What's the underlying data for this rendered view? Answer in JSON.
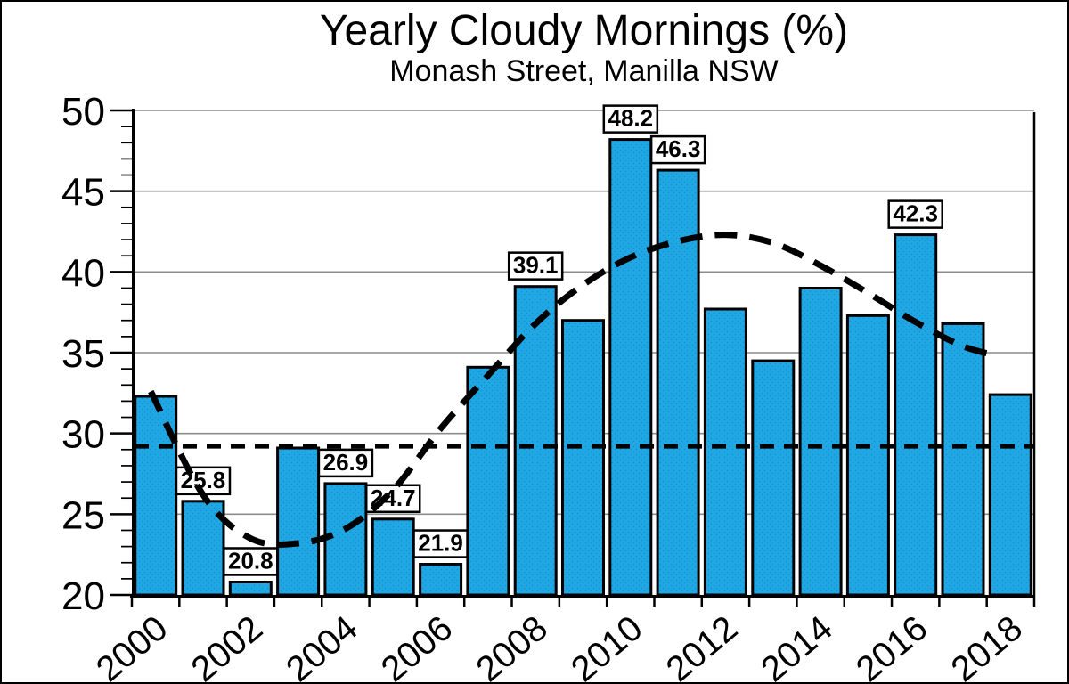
{
  "figure": {
    "title": "Yearly Cloudy Mornings (%)",
    "subtitle": "Monash Street, Manilla NSW"
  },
  "chart_data": {
    "type": "bar",
    "title": "Yearly Cloudy Mornings (%)",
    "subtitle": "Monash Street, Manilla NSW",
    "categories": [
      2000,
      2001,
      2002,
      2003,
      2004,
      2005,
      2006,
      2007,
      2008,
      2009,
      2010,
      2011,
      2012,
      2013,
      2014,
      2015,
      2016,
      2017,
      2018
    ],
    "values": [
      32.3,
      25.8,
      20.8,
      29.1,
      26.9,
      24.7,
      21.9,
      34.1,
      39.1,
      37.0,
      48.2,
      46.3,
      37.7,
      34.5,
      39.0,
      37.3,
      42.3,
      36.8,
      32.4
    ],
    "bar_value_labels": [
      "",
      "25.8",
      "20.8",
      "",
      "26.9",
      "24.7",
      "21.9",
      "",
      "39.1",
      "",
      "48.2",
      "46.3",
      "",
      "",
      "",
      "",
      "42.3",
      "",
      ""
    ],
    "ylim": [
      20,
      50
    ],
    "y_major_ticks": [
      20,
      25,
      30,
      35,
      40,
      45,
      50
    ],
    "y_minor_tick_step": 1,
    "x_label_years": [
      2000,
      2002,
      2004,
      2006,
      2008,
      2010,
      2012,
      2014,
      2016,
      2018
    ],
    "grid": "horizontal-major",
    "legend": "none",
    "mean_line": {
      "value": 29.2,
      "style": "dashed"
    },
    "trend_line": {
      "style": "dashed-curve",
      "points": [
        [
          1999.9,
          32.6
        ],
        [
          2001,
          26.2
        ],
        [
          2002,
          23.5
        ],
        [
          2003,
          23.2
        ],
        [
          2004,
          24.1
        ],
        [
          2005,
          26.5
        ],
        [
          2006,
          30.3
        ],
        [
          2007,
          33.6
        ],
        [
          2008,
          36.8
        ],
        [
          2009,
          39.2
        ],
        [
          2010,
          40.9
        ],
        [
          2011,
          41.9
        ],
        [
          2012,
          42.3
        ],
        [
          2013,
          41.8
        ],
        [
          2014,
          40.4
        ],
        [
          2015,
          38.7
        ],
        [
          2016,
          36.9
        ],
        [
          2017,
          35.4
        ],
        [
          2017.75,
          34.8
        ]
      ]
    },
    "colors": {
      "bar_fill": "#20A7E4",
      "bar_dot": "#0B93CF",
      "bar_border": "#000000",
      "line": "#000000",
      "grid": "#8c8c8c",
      "axis": "#000000",
      "label_box_bg": "#ffffff",
      "background": "#ffffff",
      "text": "#000000"
    }
  }
}
